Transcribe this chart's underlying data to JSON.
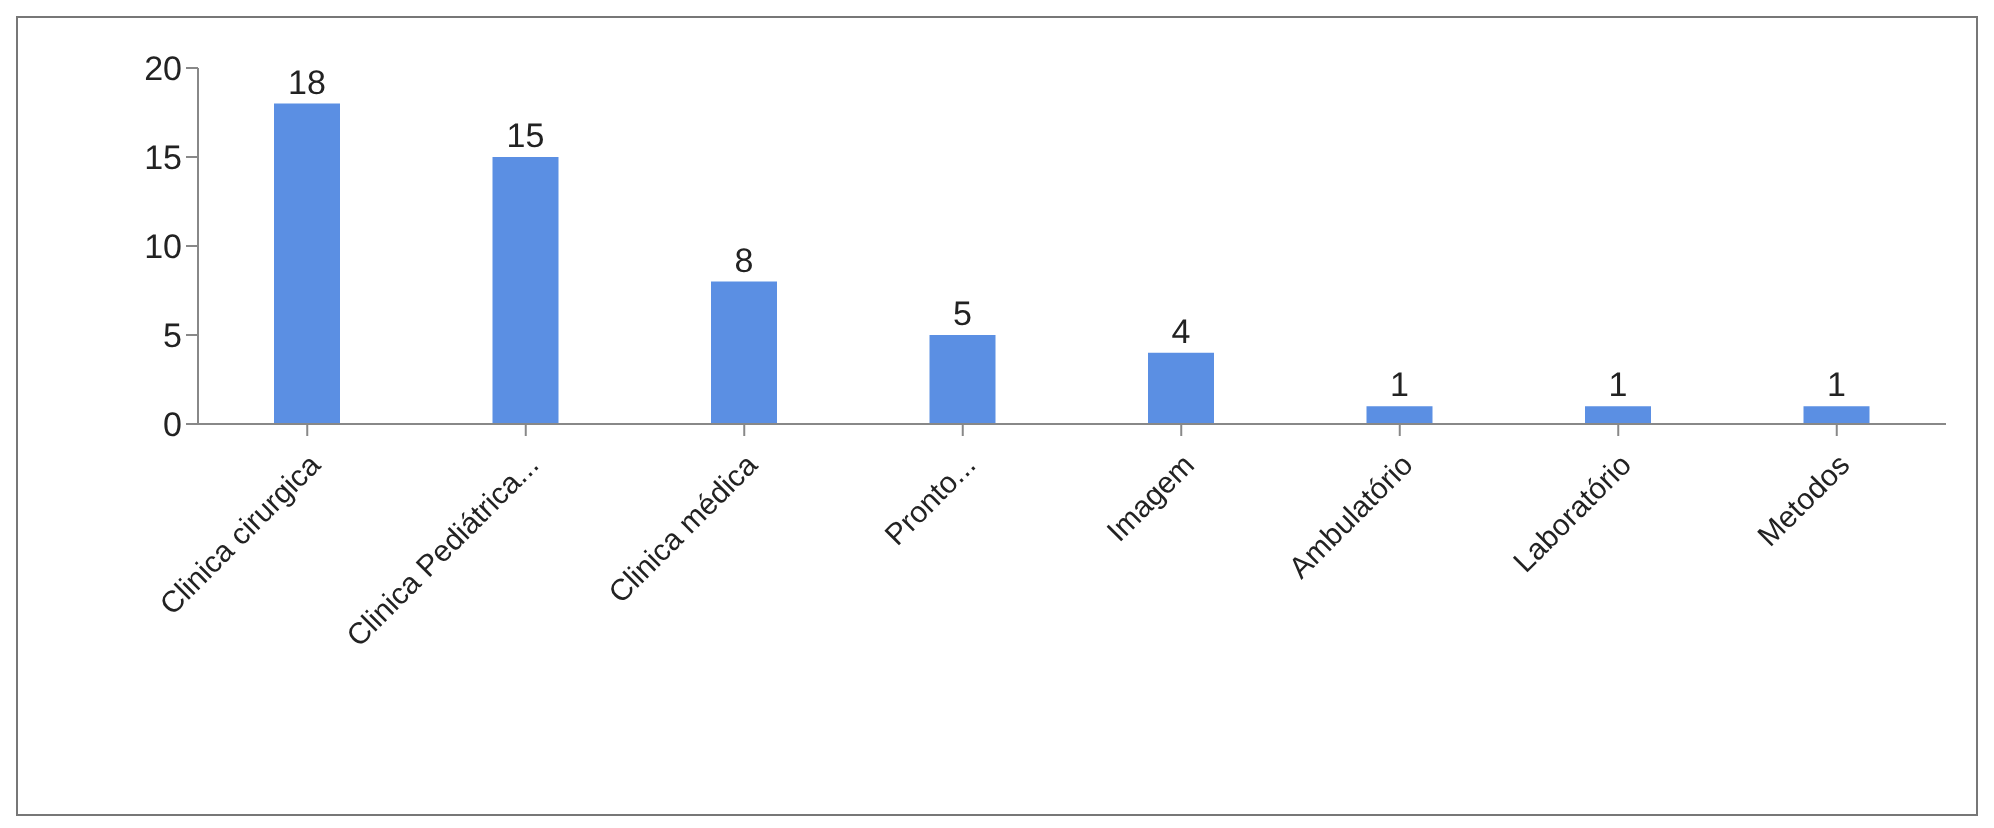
{
  "chart_data": {
    "type": "bar",
    "categories": [
      "Clinica cirurgica",
      "Clinica Pediátrica...",
      "Clinica médica",
      "Pronto...",
      "Imagem",
      "Ambulatório",
      "Laboratório",
      "Metodos"
    ],
    "values": [
      18,
      15,
      8,
      5,
      4,
      1,
      1,
      1
    ],
    "color": "#5b8fe3",
    "ylim": [
      0,
      20
    ],
    "yticks": [
      0,
      5,
      10,
      15,
      20
    ],
    "grid": false,
    "legend": false,
    "data_labels": true
  }
}
